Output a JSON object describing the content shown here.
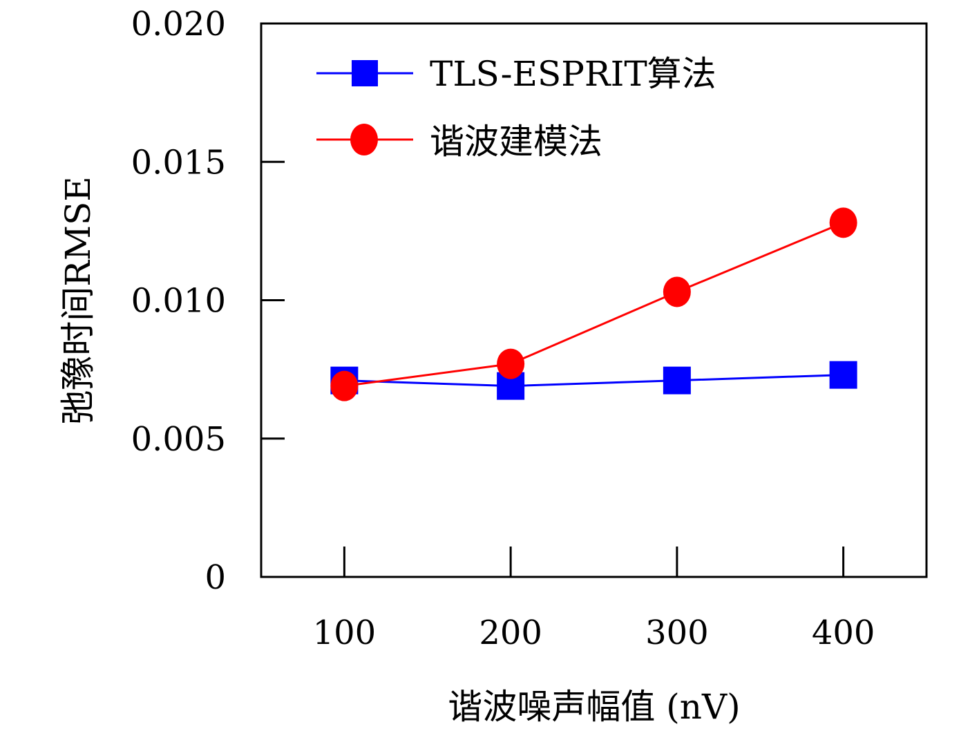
{
  "chart_data": {
    "type": "line",
    "title": "",
    "xlabel": "谐波噪声幅值 (nV)",
    "ylabel": "弛豫时间RMSE",
    "xlim": [
      50,
      450
    ],
    "ylim": [
      0,
      0.02
    ],
    "x_ticks": [
      "100",
      "200",
      "300",
      "400"
    ],
    "y_ticks": [
      "0",
      "0.005",
      "0.010",
      "0.015",
      "0.020"
    ],
    "x": [
      100,
      200,
      300,
      400
    ],
    "grid": false,
    "legend_position": "top-left",
    "series": [
      {
        "name": "TLS-ESPRIT算法",
        "color": "#0000ff",
        "marker": "square",
        "values": [
          0.0071,
          0.0069,
          0.0071,
          0.0073
        ]
      },
      {
        "name": "谐波建模法",
        "color": "#ff0000",
        "marker": "circle",
        "values": [
          0.0069,
          0.0077,
          0.0103,
          0.0128
        ]
      }
    ]
  }
}
